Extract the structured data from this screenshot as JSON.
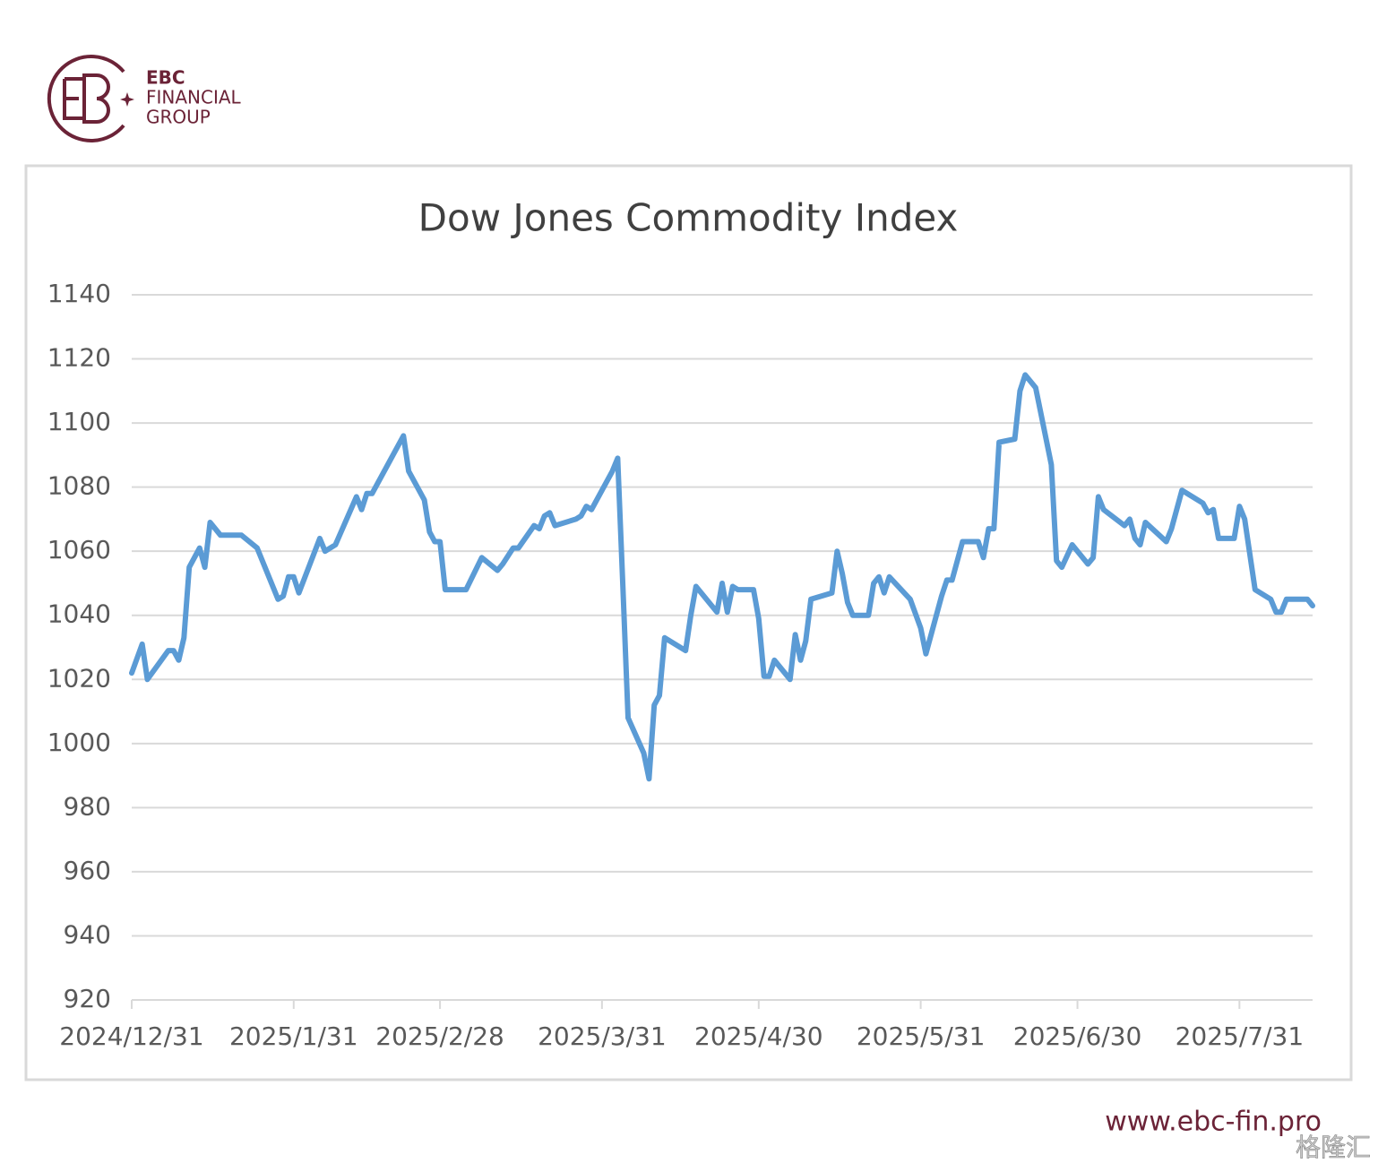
{
  "brand": {
    "name": "EBC",
    "line1": "FINANCIAL",
    "line2": "GROUP"
  },
  "website": "www.ebc-fin.pro",
  "watermark": "格隆汇",
  "chart_data": {
    "type": "line",
    "title": "Dow Jones Commodity Index",
    "color": "#5b9bd5",
    "grid": true,
    "ylim": [
      920,
      1140
    ],
    "yticks": [
      920,
      940,
      960,
      980,
      1000,
      1020,
      1040,
      1060,
      1080,
      1100,
      1120,
      1140
    ],
    "xlim": [
      "2024/12/31",
      "2025/8/14"
    ],
    "xticks": [
      "2024/12/31",
      "2025/1/31",
      "2025/2/28",
      "2025/3/31",
      "2025/4/30",
      "2025/5/31",
      "2025/6/30",
      "2025/7/31"
    ],
    "x": [
      "2024/12/31",
      "2025/1/2",
      "2025/1/3",
      "2025/1/7",
      "2025/1/8",
      "2025/1/9",
      "2025/1/10",
      "2025/1/11",
      "2025/1/13",
      "2025/1/14",
      "2025/1/15",
      "2025/1/17",
      "2025/1/21",
      "2025/1/24",
      "2025/1/28",
      "2025/1/29",
      "2025/1/30",
      "2025/1/31",
      "2025/2/1",
      "2025/2/5",
      "2025/2/6",
      "2025/2/8",
      "2025/2/12",
      "2025/2/13",
      "2025/2/14",
      "2025/2/15",
      "2025/2/19",
      "2025/2/21",
      "2025/2/22",
      "2025/2/25",
      "2025/2/26",
      "2025/2/27",
      "2025/2/28",
      "2025/3/1",
      "2025/3/5",
      "2025/3/8",
      "2025/3/11",
      "2025/3/12",
      "2025/3/14",
      "2025/3/15",
      "2025/3/18",
      "2025/3/19",
      "2025/3/20",
      "2025/3/21",
      "2025/3/22",
      "2025/3/26",
      "2025/3/27",
      "2025/3/28",
      "2025/3/29",
      "2025/4/2",
      "2025/4/3",
      "2025/4/4",
      "2025/4/5",
      "2025/4/8",
      "2025/4/9",
      "2025/4/10",
      "2025/4/11",
      "2025/4/12",
      "2025/4/16",
      "2025/4/17",
      "2025/4/18",
      "2025/4/22",
      "2025/4/23",
      "2025/4/24",
      "2025/4/25",
      "2025/4/26",
      "2025/4/29",
      "2025/4/30",
      "2025/5/1",
      "2025/5/2",
      "2025/5/3",
      "2025/5/6",
      "2025/5/7",
      "2025/5/8",
      "2025/5/9",
      "2025/5/10",
      "2025/5/14",
      "2025/5/15",
      "2025/5/16",
      "2025/5/17",
      "2025/5/18",
      "2025/5/21",
      "2025/5/22",
      "2025/5/23",
      "2025/5/24",
      "2025/5/25",
      "2025/5/29",
      "2025/5/31",
      "2025/6/1",
      "2025/6/4",
      "2025/6/5",
      "2025/6/6",
      "2025/6/8",
      "2025/6/11",
      "2025/6/12",
      "2025/6/13",
      "2025/6/14",
      "2025/6/15",
      "2025/6/18",
      "2025/6/19",
      "2025/6/20",
      "2025/6/22",
      "2025/6/25",
      "2025/6/26",
      "2025/6/27",
      "2025/6/29",
      "2025/7/2",
      "2025/7/3",
      "2025/7/4",
      "2025/7/5",
      "2025/7/9",
      "2025/7/10",
      "2025/7/11",
      "2025/7/12",
      "2025/7/13",
      "2025/7/17",
      "2025/7/18",
      "2025/7/20",
      "2025/7/23",
      "2025/7/24",
      "2025/7/25",
      "2025/7/26",
      "2025/7/27",
      "2025/7/30",
      "2025/7/31",
      "2025/8/1",
      "2025/8/3",
      "2025/8/6",
      "2025/8/7",
      "2025/8/8",
      "2025/8/9",
      "2025/8/10",
      "2025/8/13",
      "2025/8/14"
    ],
    "values": [
      1022,
      1031,
      1020,
      1029,
      1029,
      1026,
      1033,
      1055,
      1061,
      1055,
      1069,
      1065,
      1065,
      1061,
      1045,
      1046,
      1052,
      1052,
      1047,
      1064,
      1060,
      1062,
      1077,
      1073,
      1078,
      1078,
      1090,
      1096,
      1085,
      1076,
      1066,
      1063,
      1063,
      1048,
      1048,
      1058,
      1054,
      1056,
      1061,
      1061,
      1068,
      1067,
      1071,
      1072,
      1068,
      1070,
      1071,
      1074,
      1073,
      1085,
      1089,
      1049,
      1008,
      997,
      989,
      1012,
      1015,
      1033,
      1029,
      1040,
      1049,
      1041,
      1050,
      1041,
      1049,
      1048,
      1048,
      1039,
      1021,
      1021,
      1026,
      1020,
      1034,
      1026,
      1032,
      1045,
      1047,
      1060,
      1053,
      1044,
      1040,
      1040,
      1050,
      1052,
      1047,
      1052,
      1045,
      1036,
      1028,
      1046,
      1051,
      1051,
      1063,
      1063,
      1058,
      1067,
      1067,
      1094,
      1095,
      1110,
      1115,
      1111,
      1087,
      1057,
      1055,
      1062,
      1056,
      1058,
      1077,
      1073,
      1068,
      1070,
      1064,
      1062,
      1069,
      1063,
      1067,
      1079,
      1076,
      1075,
      1072,
      1073,
      1064,
      1064,
      1074,
      1070,
      1048,
      1045,
      1041,
      1041,
      1045,
      1045,
      1045,
      1043
    ]
  }
}
